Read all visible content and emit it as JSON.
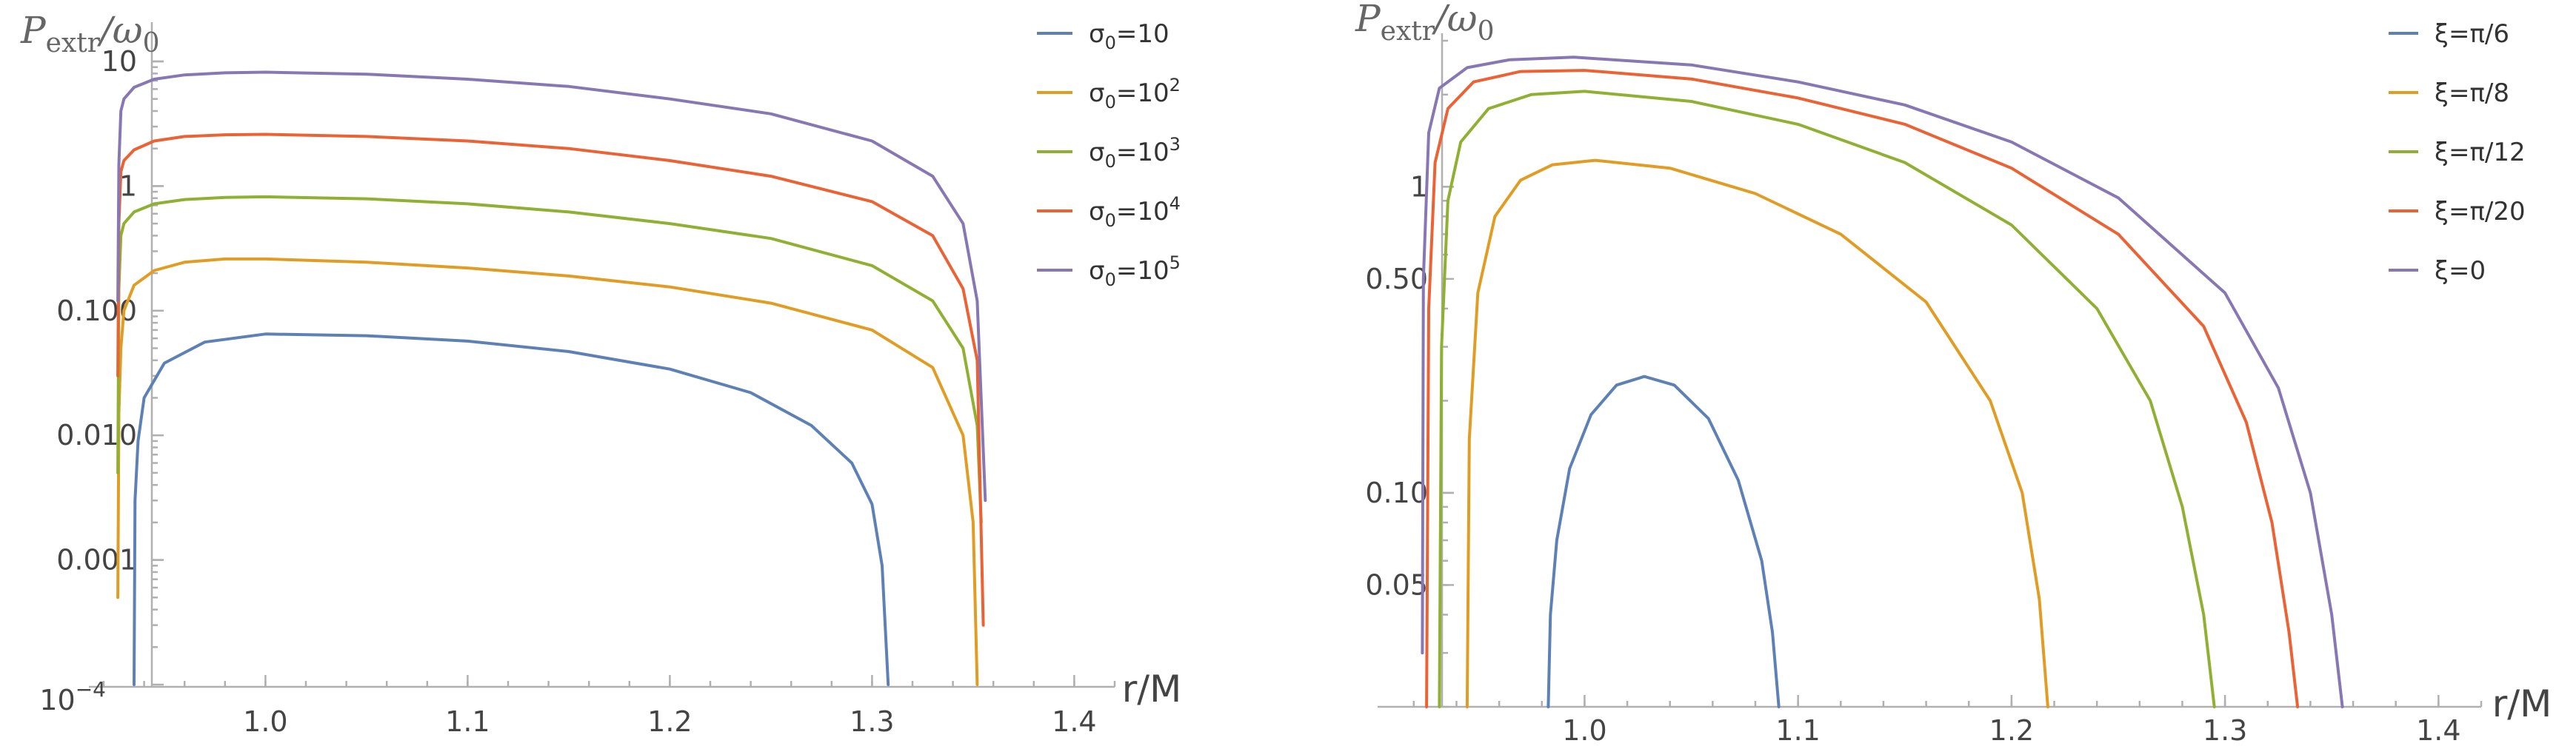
{
  "chart_data": [
    {
      "type": "line",
      "yscale": "log",
      "ylabel_main": "P",
      "ylabel_sub": "extr",
      "ylabel_tail": "/ω",
      "ylabel_tail_sub": "0",
      "xlabel": "r/M",
      "xlim": [
        0.92,
        1.42
      ],
      "ylim": [
        0.0001,
        18
      ],
      "xticks": [
        {
          "v": 1.0,
          "label": "1.0"
        },
        {
          "v": 1.1,
          "label": "1.1"
        },
        {
          "v": 1.2,
          "label": "1.2"
        },
        {
          "v": 1.3,
          "label": "1.3"
        },
        {
          "v": 1.4,
          "label": "1.4"
        }
      ],
      "yticks": [
        {
          "v": 10,
          "label": "10"
        },
        {
          "v": 1,
          "label": "1"
        },
        {
          "v": 0.1,
          "label": "0.100"
        },
        {
          "v": 0.01,
          "label": "0.010"
        },
        {
          "v": 0.001,
          "label": "0.001"
        }
      ],
      "ytick_bottom": {
        "v": 0.0001,
        "base": "10",
        "exp": "−4"
      },
      "legend_position": "top-right",
      "series": [
        {
          "name": "σ0=10",
          "label_main": "σ",
          "label_sub": "0",
          "label_rest": "=10",
          "label_sup": "",
          "color": "#5E81B5",
          "x": [
            0.935,
            0.9355,
            0.937,
            0.94,
            0.95,
            0.97,
            1.0,
            1.05,
            1.1,
            1.15,
            1.2,
            1.24,
            1.27,
            1.29,
            1.3,
            1.305,
            1.308
          ],
          "y": [
            0.0001,
            0.003,
            0.009,
            0.02,
            0.038,
            0.056,
            0.065,
            0.063,
            0.057,
            0.047,
            0.034,
            0.022,
            0.012,
            0.006,
            0.0028,
            0.0009,
            0.0001
          ]
        },
        {
          "name": "σ0=10²",
          "label_main": "σ",
          "label_sub": "0",
          "label_rest": "=10",
          "label_sup": "2",
          "color": "#E19C24",
          "x": [
            0.927,
            0.9275,
            0.9285,
            0.93,
            0.935,
            0.945,
            0.96,
            0.98,
            1.0,
            1.05,
            1.1,
            1.15,
            1.2,
            1.25,
            1.3,
            1.33,
            1.345,
            1.35,
            1.352
          ],
          "y": [
            0.0005,
            0.015,
            0.05,
            0.1,
            0.16,
            0.21,
            0.245,
            0.26,
            0.26,
            0.245,
            0.22,
            0.19,
            0.155,
            0.115,
            0.07,
            0.035,
            0.01,
            0.002,
            0.0001
          ]
        },
        {
          "name": "σ0=10³",
          "label_main": "σ",
          "label_sub": "0",
          "label_rest": "=10",
          "label_sup": "3",
          "color": "#8FB032",
          "x": [
            0.927,
            0.9275,
            0.9285,
            0.93,
            0.935,
            0.945,
            0.96,
            0.98,
            1.0,
            1.05,
            1.1,
            1.15,
            1.2,
            1.25,
            1.3,
            1.33,
            1.345,
            1.352,
            1.354
          ],
          "y": [
            0.005,
            0.15,
            0.4,
            0.5,
            0.62,
            0.72,
            0.78,
            0.81,
            0.82,
            0.79,
            0.72,
            0.62,
            0.5,
            0.38,
            0.23,
            0.12,
            0.05,
            0.012,
            0.002
          ]
        },
        {
          "name": "σ0=10⁴",
          "label_main": "σ",
          "label_sub": "0",
          "label_rest": "=10",
          "label_sup": "4",
          "color": "#EB6235",
          "x": [
            0.927,
            0.9275,
            0.9285,
            0.93,
            0.935,
            0.945,
            0.96,
            0.98,
            1.0,
            1.05,
            1.1,
            1.15,
            1.2,
            1.25,
            1.3,
            1.33,
            1.345,
            1.352,
            1.355
          ],
          "y": [
            0.03,
            0.5,
            1.3,
            1.6,
            1.95,
            2.3,
            2.5,
            2.58,
            2.6,
            2.5,
            2.3,
            2.0,
            1.6,
            1.2,
            0.75,
            0.4,
            0.15,
            0.04,
            0.0003
          ]
        },
        {
          "name": "σ0=10⁵",
          "label_main": "σ",
          "label_sub": "0",
          "label_rest": "=10",
          "label_sup": "5",
          "color": "#8778B3",
          "x": [
            0.927,
            0.9275,
            0.9285,
            0.93,
            0.935,
            0.945,
            0.96,
            0.98,
            1.0,
            1.05,
            1.1,
            1.15,
            1.2,
            1.25,
            1.3,
            1.33,
            1.345,
            1.352,
            1.356
          ],
          "y": [
            0.12,
            1.5,
            4.0,
            5.0,
            6.2,
            7.2,
            7.8,
            8.1,
            8.2,
            7.9,
            7.2,
            6.3,
            5.0,
            3.8,
            2.3,
            1.2,
            0.5,
            0.12,
            0.003
          ]
        }
      ]
    },
    {
      "type": "line",
      "yscale": "log",
      "ylabel_main": "P",
      "ylabel_sub": "extr",
      "ylabel_tail": "/ω",
      "ylabel_tail_sub": "0",
      "xlabel": "r/M",
      "xlim": [
        0.91,
        1.42
      ],
      "ylim": [
        0.02,
        3.0
      ],
      "xticks": [
        {
          "v": 1.0,
          "label": "1.0"
        },
        {
          "v": 1.1,
          "label": "1.1"
        },
        {
          "v": 1.2,
          "label": "1.2"
        },
        {
          "v": 1.3,
          "label": "1.3"
        },
        {
          "v": 1.4,
          "label": "1.4"
        }
      ],
      "yticks": [
        {
          "v": 1,
          "label": "1"
        },
        {
          "v": 0.5,
          "label": "0.50"
        },
        {
          "v": 0.1,
          "label": "0.10"
        },
        {
          "v": 0.05,
          "label": "0.05"
        }
      ],
      "legend_position": "top-right",
      "series": [
        {
          "name": "ξ=π/6",
          "label_main": "ξ=π/6",
          "color": "#5E81B5",
          "x": [
            0.983,
            0.984,
            0.987,
            0.993,
            1.003,
            1.015,
            1.028,
            1.042,
            1.058,
            1.072,
            1.083,
            1.088,
            1.091
          ],
          "y": [
            0.02,
            0.04,
            0.07,
            0.12,
            0.18,
            0.225,
            0.24,
            0.225,
            0.175,
            0.11,
            0.06,
            0.035,
            0.02
          ]
        },
        {
          "name": "ξ=π/8",
          "label_main": "ξ=π/8",
          "color": "#E19C24",
          "x": [
            0.945,
            0.946,
            0.95,
            0.958,
            0.97,
            0.985,
            1.005,
            1.04,
            1.08,
            1.12,
            1.16,
            1.19,
            1.205,
            1.213,
            1.217
          ],
          "y": [
            0.02,
            0.15,
            0.45,
            0.8,
            1.05,
            1.18,
            1.22,
            1.15,
            0.95,
            0.7,
            0.42,
            0.2,
            0.1,
            0.045,
            0.02
          ]
        },
        {
          "name": "ξ=π/12",
          "label_main": "ξ=π/12",
          "color": "#8FB032",
          "x": [
            0.932,
            0.933,
            0.936,
            0.942,
            0.955,
            0.975,
            1.0,
            1.05,
            1.1,
            1.15,
            1.2,
            1.24,
            1.265,
            1.28,
            1.29,
            1.295
          ],
          "y": [
            0.02,
            0.3,
            0.9,
            1.4,
            1.8,
            2.0,
            2.05,
            1.9,
            1.6,
            1.2,
            0.75,
            0.4,
            0.2,
            0.09,
            0.04,
            0.02
          ]
        },
        {
          "name": "ξ=π/20",
          "label_main": "ξ=π/20",
          "color": "#EB6235",
          "x": [
            0.926,
            0.927,
            0.93,
            0.936,
            0.948,
            0.97,
            1.0,
            1.05,
            1.1,
            1.15,
            1.2,
            1.25,
            1.29,
            1.31,
            1.322,
            1.33,
            1.334
          ],
          "y": [
            0.02,
            0.4,
            1.2,
            1.8,
            2.2,
            2.38,
            2.4,
            2.25,
            1.95,
            1.6,
            1.15,
            0.7,
            0.35,
            0.17,
            0.08,
            0.035,
            0.02
          ]
        },
        {
          "name": "ξ=0",
          "label_main": "ξ=0",
          "color": "#8778B3",
          "x": [
            0.924,
            0.9245,
            0.927,
            0.932,
            0.945,
            0.965,
            0.995,
            1.05,
            1.1,
            1.15,
            1.2,
            1.25,
            1.3,
            1.325,
            1.34,
            1.35,
            1.355
          ],
          "y": [
            0.03,
            0.5,
            1.5,
            2.1,
            2.45,
            2.6,
            2.65,
            2.5,
            2.2,
            1.85,
            1.4,
            0.92,
            0.45,
            0.22,
            0.1,
            0.04,
            0.02
          ]
        }
      ]
    }
  ]
}
